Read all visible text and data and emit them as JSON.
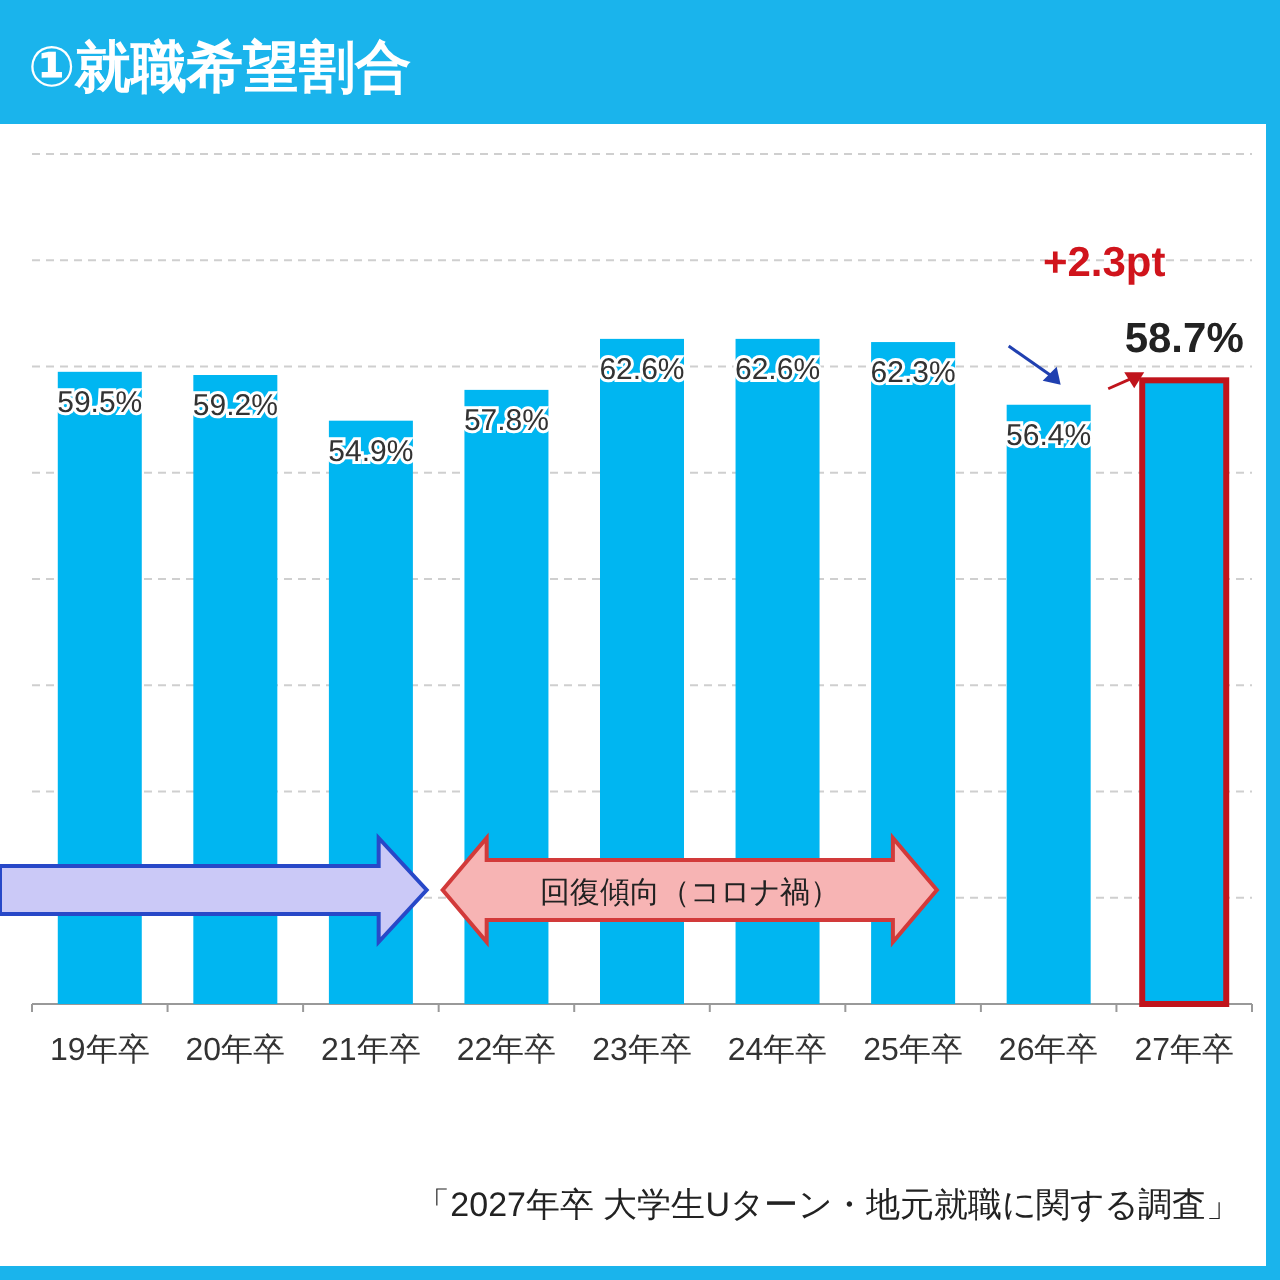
{
  "chart_data": {
    "type": "bar",
    "title": "①就職希望割合",
    "categories": [
      "19年卒",
      "20年卒",
      "21年卒",
      "22年卒",
      "23年卒",
      "24年卒",
      "25年卒",
      "26年卒",
      "27年卒"
    ],
    "values": [
      59.5,
      59.2,
      54.9,
      57.8,
      62.6,
      62.6,
      62.3,
      56.4,
      58.7
    ],
    "color": "#00b6f1",
    "value_labels": [
      "59.5%",
      "59.2%",
      "54.9%",
      "57.8%",
      "62.6%",
      "62.6%",
      "62.3%",
      "56.4%",
      "58.7%"
    ],
    "ylim": [
      0,
      80
    ],
    "yticks": [
      {
        "value": 10,
        "label": null
      },
      {
        "value": 20,
        "label": null
      },
      {
        "value": 30,
        "label": null
      },
      {
        "value": 40,
        "label": null
      },
      {
        "value": 50,
        "label": null
      },
      {
        "value": 60,
        "label": null
      },
      {
        "value": 70,
        "label": null
      },
      {
        "value": 80,
        "label": null
      }
    ],
    "grid": "y",
    "tick_labels": "x",
    "annotations": [
      "回復傾向（コロナ禍）",
      "+2.3pt",
      "「2027年卒 大学生Uターン・地元就職に関する調査」"
    ]
  }
}
